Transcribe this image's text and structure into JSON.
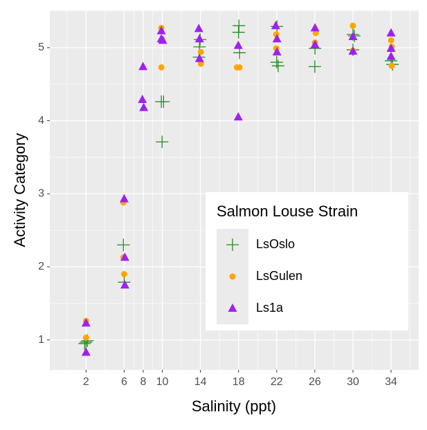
{
  "chart_data": {
    "type": "scatter",
    "x_label": "Salinity (ppt)",
    "y_label": "Activity Category",
    "legend_title": "Salmon Louse Strain",
    "legend_position": "right-middle-inside",
    "xlim": [
      -1.8,
      36.9
    ],
    "ylim": [
      0.59,
      5.51
    ],
    "xticks": [
      2,
      6,
      8,
      10,
      14,
      18,
      22,
      26,
      30,
      34
    ],
    "yticks": [
      1,
      2,
      3,
      4,
      5
    ],
    "grid": true,
    "series": [
      {
        "name": "LsOslo",
        "color": "#228b22",
        "marker": "plus",
        "x": [
          1.85,
          2.15,
          2.0,
          5.92,
          6.0,
          10.13,
          9.98,
          9.9,
          13.97,
          13.9,
          13.85,
          18.04,
          18.0,
          18.1,
          22.03,
          22.0,
          22.15,
          26.02,
          26.0,
          30.0,
          30.0,
          30.15,
          34.0,
          34.15
        ],
        "y": [
          0.95,
          0.99,
          0.97,
          2.3,
          1.79,
          4.26,
          3.71,
          4.26,
          5.11,
          5.01,
          4.87,
          5.3,
          5.21,
          4.93,
          5.29,
          4.8,
          4.75,
          4.99,
          4.74,
          5.18,
          4.97,
          5.16,
          4.82,
          4.77
        ]
      },
      {
        "name": "LsGulen",
        "color": "#ffa500",
        "marker": "circle",
        "x": [
          2.0,
          2.0,
          5.92,
          5.92,
          6.0,
          9.9,
          9.9,
          9.98,
          14.05,
          14.05,
          17.83,
          18.1,
          21.95,
          21.95,
          26.1,
          26.02,
          30.0,
          30.0,
          34.0,
          34.07,
          34.07
        ],
        "y": [
          1.26,
          1.03,
          2.88,
          2.13,
          1.9,
          5.27,
          4.73,
          5.11,
          4.94,
          4.78,
          4.73,
          4.73,
          5.18,
          4.99,
          5.2,
          5.07,
          5.3,
          4.96,
          5.1,
          5.01,
          4.75
        ]
      },
      {
        "name": "Ls1a",
        "color": "#a020f0",
        "marker": "triangle",
        "x": [
          2.0,
          2.0,
          6.0,
          6.07,
          6.07,
          7.98,
          7.91,
          8.05,
          9.9,
          9.9,
          10.05,
          13.83,
          13.9,
          13.9,
          17.97,
          17.97,
          22.03,
          22.03,
          21.9,
          26.02,
          26.02,
          30.0,
          30.0,
          34.0,
          34.0,
          34.0
        ],
        "y": [
          1.23,
          0.83,
          2.93,
          2.13,
          1.75,
          4.74,
          4.29,
          4.18,
          5.23,
          5.12,
          5.1,
          5.26,
          5.12,
          4.85,
          5.03,
          4.05,
          5.12,
          4.94,
          5.3,
          5.27,
          5.04,
          5.15,
          4.95,
          5.2,
          4.99,
          4.88
        ]
      }
    ]
  }
}
